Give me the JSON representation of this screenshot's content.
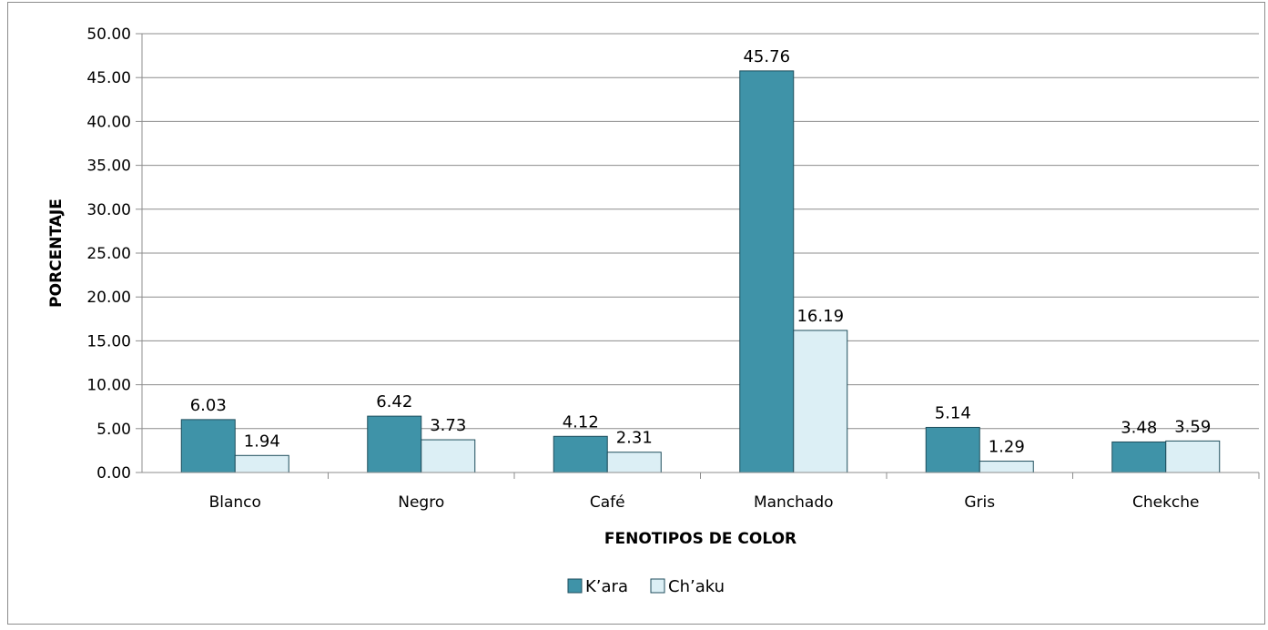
{
  "chart_data": {
    "type": "bar",
    "title": "",
    "xlabel": "FENOTIPOS DE COLOR",
    "ylabel": "PORCENTAJE",
    "ylim": [
      0,
      50
    ],
    "ytick_step": 5,
    "ytick_labels": [
      "0.00",
      "5.00",
      "10.00",
      "15.00",
      "20.00",
      "25.00",
      "30.00",
      "35.00",
      "40.00",
      "45.00",
      "50.00"
    ],
    "categories": [
      "Blanco",
      "Negro",
      "Café",
      "Manchado",
      "Gris",
      "Chekche"
    ],
    "series": [
      {
        "name": "K’ara",
        "values": [
          6.03,
          6.42,
          4.12,
          45.76,
          5.14,
          3.48
        ],
        "color": "#3f93a8"
      },
      {
        "name": "Ch’aku",
        "values": [
          1.94,
          3.73,
          2.31,
          16.19,
          1.29,
          3.59
        ],
        "color": "#dceff5"
      }
    ],
    "grid": true,
    "legend_position": "bottom",
    "data_labels": true
  }
}
